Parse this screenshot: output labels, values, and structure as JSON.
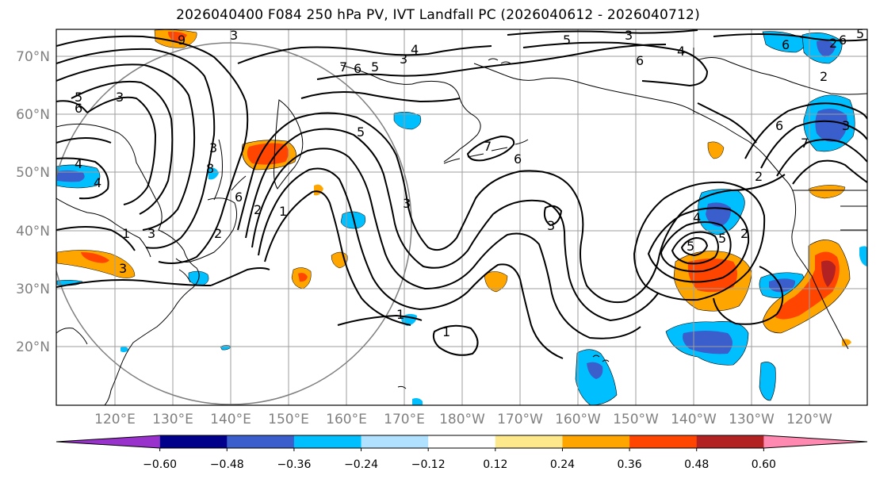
{
  "title": "2026040400 F084 250 hPa PV, IVT Landfall PC (2026040612 - 2026040712)",
  "lat_labels": [
    "70°N",
    "60°N",
    "50°N",
    "40°N",
    "30°N",
    "20°N"
  ],
  "lon_labels": [
    "120°E",
    "130°E",
    "140°E",
    "150°E",
    "160°E",
    "170°E",
    "180°W",
    "170°W",
    "160°W",
    "150°W",
    "140°W",
    "130°W",
    "120°W"
  ],
  "colorbar": {
    "ticks": [
      "−0.60",
      "−0.48",
      "−0.36",
      "−0.24",
      "−0.12",
      "0.12",
      "0.24",
      "0.36",
      "0.48",
      "0.60"
    ],
    "colors": [
      "#9932cc",
      "#00008b",
      "#3a5fcd",
      "#00bfff",
      "#b0e2ff",
      "#ffffff",
      "#fde98b",
      "#ffa500",
      "#ff4500",
      "#b22222",
      "#ff89b0"
    ]
  },
  "contour_labels": [
    "9",
    "3",
    "5",
    "3",
    "5",
    "6",
    "7",
    "6",
    "3",
    "5",
    "4",
    "5",
    "3",
    "6",
    "4",
    "7",
    "6",
    "4",
    "3",
    "8",
    "6",
    "2",
    "3",
    "1",
    "4",
    "2",
    "3",
    "1",
    "5",
    "2",
    "5",
    "6",
    "7",
    "2",
    "3",
    "1",
    "1",
    "3",
    "4",
    "2",
    "6",
    "5",
    "6",
    "3",
    "2"
  ]
}
